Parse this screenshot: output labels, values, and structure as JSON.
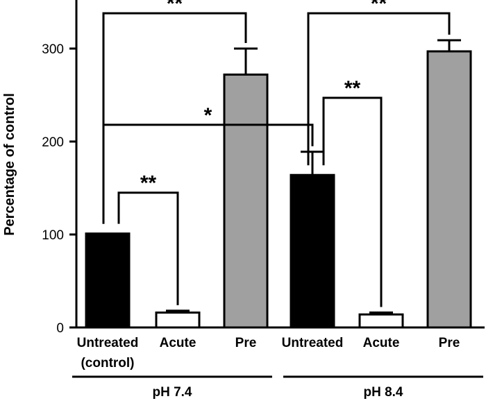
{
  "chart_data": {
    "type": "bar",
    "ylabel": "Percentage of control",
    "ylim": [
      0,
      350
    ],
    "yticks": [
      0,
      100,
      200,
      300
    ],
    "bars": [
      {
        "label": "Untreated",
        "sublabel": "(control)",
        "value": 101,
        "error": 0,
        "fill": "#000000",
        "group": 0
      },
      {
        "label": "Acute",
        "value": 16,
        "error": 2,
        "fill": "#ffffff",
        "group": 0
      },
      {
        "label": "Pre",
        "value": 272,
        "error": 28,
        "fill": "#a0a0a0",
        "group": 0
      },
      {
        "label": "Untreated",
        "value": 164,
        "error": 25,
        "fill": "#000000",
        "group": 1
      },
      {
        "label": "Acute",
        "value": 14,
        "error": 2,
        "fill": "#ffffff",
        "group": 1
      },
      {
        "label": "Pre",
        "value": 297,
        "error": 12,
        "fill": "#a0a0a0",
        "group": 1
      }
    ],
    "groups": [
      {
        "label": "pH 7.4"
      },
      {
        "label": "pH 8.4"
      }
    ],
    "significance": [
      {
        "from": 0,
        "to": 2,
        "level": 338,
        "stars": "**"
      },
      {
        "from": 0,
        "to": 1,
        "level": 145,
        "stars": "**"
      },
      {
        "from": 0,
        "to": 3,
        "level": 218,
        "stars": "*"
      },
      {
        "from": 3,
        "to": 5,
        "level": 338,
        "stars": "**"
      },
      {
        "from": 3,
        "to": 4,
        "level": 247,
        "stars": "**"
      }
    ],
    "grid": false,
    "legend": "none"
  }
}
